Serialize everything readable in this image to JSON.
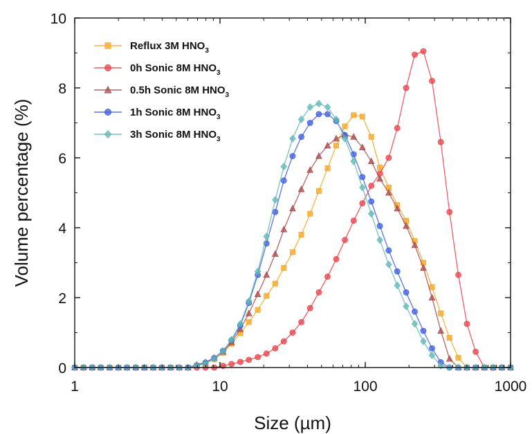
{
  "chart_data": {
    "type": "line",
    "title": "",
    "xlabel": "Size (µm)",
    "ylabel": "Volume percentage (%)",
    "x_scale": "log",
    "xlim": [
      1,
      1000
    ],
    "ylim": [
      0,
      10
    ],
    "x_ticks": [
      1,
      10,
      100,
      1000
    ],
    "x_tick_labels": [
      "1",
      "10",
      "100",
      "1000"
    ],
    "y_ticks": [
      0,
      2,
      4,
      6,
      8,
      10
    ],
    "y_tick_labels": [
      "0",
      "2",
      "4",
      "6",
      "8",
      "10"
    ],
    "grid": false,
    "legend_position": "top-left",
    "series": [
      {
        "name": "Reflux 3M HNO3",
        "legend_main": "Reflux 3M HNO",
        "legend_sub": "3",
        "color": "#f5a623",
        "marker": "square",
        "points": [
          [
            1,
            0
          ],
          [
            1.15,
            0
          ],
          [
            1.32,
            0
          ],
          [
            1.51,
            0
          ],
          [
            1.74,
            0
          ],
          [
            2.0,
            0
          ],
          [
            2.29,
            0
          ],
          [
            2.63,
            0
          ],
          [
            3.02,
            0
          ],
          [
            3.47,
            0
          ],
          [
            3.98,
            0
          ],
          [
            4.57,
            0
          ],
          [
            5.25,
            0
          ],
          [
            6.03,
            0
          ],
          [
            6.92,
            0.05
          ],
          [
            7.94,
            0.12
          ],
          [
            9.12,
            0.24
          ],
          [
            10.5,
            0.42
          ],
          [
            12.0,
            0.68
          ],
          [
            13.8,
            0.98
          ],
          [
            15.8,
            1.3
          ],
          [
            18.2,
            1.65
          ],
          [
            20.9,
            2.05
          ],
          [
            24.0,
            2.4
          ],
          [
            27.5,
            2.85
          ],
          [
            31.6,
            3.3
          ],
          [
            36.3,
            3.8
          ],
          [
            41.7,
            4.4
          ],
          [
            47.9,
            5.05
          ],
          [
            55.0,
            5.7
          ],
          [
            63.1,
            6.35
          ],
          [
            72.4,
            6.9
          ],
          [
            83.2,
            7.22
          ],
          [
            95.5,
            7.18
          ],
          [
            110,
            6.6
          ],
          [
            126,
            5.72
          ],
          [
            145,
            5.15
          ],
          [
            166,
            4.65
          ],
          [
            191,
            4.2
          ],
          [
            219,
            3.62
          ],
          [
            251,
            3.0
          ],
          [
            288,
            2.3
          ],
          [
            331,
            1.55
          ],
          [
            380,
            0.85
          ],
          [
            437,
            0.28
          ],
          [
            501,
            0
          ],
          [
            575,
            0
          ],
          [
            661,
            0
          ],
          [
            759,
            0
          ],
          [
            871,
            0
          ],
          [
            1000,
            0
          ]
        ]
      },
      {
        "name": "0h Sonic 8M HNO3",
        "legend_main": "0h Sonic 8M HNO",
        "legend_sub": "3",
        "color": "#e8424a",
        "marker": "circle",
        "points": [
          [
            1,
            0
          ],
          [
            1.15,
            0
          ],
          [
            1.32,
            0
          ],
          [
            1.51,
            0
          ],
          [
            1.74,
            0
          ],
          [
            2.0,
            0
          ],
          [
            2.29,
            0
          ],
          [
            2.63,
            0
          ],
          [
            3.02,
            0
          ],
          [
            3.47,
            0
          ],
          [
            3.98,
            0
          ],
          [
            4.57,
            0
          ],
          [
            5.25,
            0
          ],
          [
            6.03,
            0
          ],
          [
            6.92,
            0
          ],
          [
            7.94,
            0
          ],
          [
            9.12,
            0
          ],
          [
            10.5,
            0.05
          ],
          [
            12.0,
            0.1
          ],
          [
            13.8,
            0.16
          ],
          [
            15.8,
            0.22
          ],
          [
            18.2,
            0.3
          ],
          [
            20.9,
            0.4
          ],
          [
            24.0,
            0.55
          ],
          [
            27.5,
            0.75
          ],
          [
            31.6,
            1.0
          ],
          [
            36.3,
            1.3
          ],
          [
            41.7,
            1.7
          ],
          [
            47.9,
            2.15
          ],
          [
            55.0,
            2.6
          ],
          [
            63.1,
            3.1
          ],
          [
            72.4,
            3.65
          ],
          [
            83.2,
            4.2
          ],
          [
            95.5,
            4.7
          ],
          [
            110,
            5.2
          ],
          [
            126,
            5.55
          ],
          [
            145,
            6.0
          ],
          [
            166,
            6.85
          ],
          [
            191,
            8.0
          ],
          [
            219,
            8.95
          ],
          [
            251,
            9.05
          ],
          [
            288,
            8.2
          ],
          [
            331,
            6.45
          ],
          [
            380,
            4.45
          ],
          [
            437,
            2.65
          ],
          [
            501,
            1.25
          ],
          [
            575,
            0.45
          ],
          [
            661,
            0
          ],
          [
            759,
            0
          ],
          [
            871,
            0
          ],
          [
            1000,
            0
          ]
        ]
      },
      {
        "name": "0.5h Sonic 8M HNO3",
        "legend_main": "0.5h Sonic 8M HNO",
        "legend_sub": "3",
        "color": "#a94a4a",
        "marker": "triangle",
        "points": [
          [
            1,
            0
          ],
          [
            1.15,
            0
          ],
          [
            1.32,
            0
          ],
          [
            1.51,
            0
          ],
          [
            1.74,
            0
          ],
          [
            2.0,
            0
          ],
          [
            2.29,
            0
          ],
          [
            2.63,
            0
          ],
          [
            3.02,
            0
          ],
          [
            3.47,
            0
          ],
          [
            3.98,
            0
          ],
          [
            4.57,
            0
          ],
          [
            5.25,
            0
          ],
          [
            6.03,
            0
          ],
          [
            6.92,
            0.08
          ],
          [
            7.94,
            0.15
          ],
          [
            9.12,
            0.28
          ],
          [
            10.5,
            0.45
          ],
          [
            12.0,
            0.72
          ],
          [
            13.8,
            1.1
          ],
          [
            15.8,
            1.55
          ],
          [
            18.2,
            2.1
          ],
          [
            20.9,
            2.65
          ],
          [
            24.0,
            3.25
          ],
          [
            27.5,
            3.95
          ],
          [
            31.6,
            4.55
          ],
          [
            36.3,
            5.1
          ],
          [
            41.7,
            5.65
          ],
          [
            47.9,
            6.05
          ],
          [
            55.0,
            6.35
          ],
          [
            63.1,
            6.55
          ],
          [
            72.4,
            6.65
          ],
          [
            83.2,
            6.6
          ],
          [
            95.5,
            6.3
          ],
          [
            110,
            5.9
          ],
          [
            126,
            5.4
          ],
          [
            145,
            5.0
          ],
          [
            166,
            4.55
          ],
          [
            191,
            4.05
          ],
          [
            219,
            3.5
          ],
          [
            251,
            2.85
          ],
          [
            288,
            2.0
          ],
          [
            331,
            1.05
          ],
          [
            380,
            0.25
          ],
          [
            437,
            0
          ],
          [
            501,
            0
          ],
          [
            575,
            0
          ],
          [
            661,
            0
          ],
          [
            759,
            0
          ],
          [
            871,
            0
          ],
          [
            1000,
            0
          ]
        ]
      },
      {
        "name": "1h Sonic 8M HNO3",
        "legend_main": "1h Sonic 8M HNO",
        "legend_sub": "3",
        "color": "#3d5ce0",
        "marker": "circle",
        "points": [
          [
            1,
            0
          ],
          [
            1.15,
            0
          ],
          [
            1.32,
            0
          ],
          [
            1.51,
            0
          ],
          [
            1.74,
            0
          ],
          [
            2.0,
            0
          ],
          [
            2.29,
            0
          ],
          [
            2.63,
            0
          ],
          [
            3.02,
            0
          ],
          [
            3.47,
            0
          ],
          [
            3.98,
            0
          ],
          [
            4.57,
            0
          ],
          [
            5.25,
            0
          ],
          [
            6.03,
            0
          ],
          [
            6.92,
            0.06
          ],
          [
            7.94,
            0.14
          ],
          [
            9.12,
            0.27
          ],
          [
            10.5,
            0.48
          ],
          [
            12.0,
            0.78
          ],
          [
            13.8,
            1.2
          ],
          [
            15.8,
            1.85
          ],
          [
            18.2,
            2.65
          ],
          [
            20.9,
            3.55
          ],
          [
            24.0,
            4.45
          ],
          [
            27.5,
            5.35
          ],
          [
            31.6,
            6.05
          ],
          [
            36.3,
            6.6
          ],
          [
            41.7,
            7.0
          ],
          [
            47.9,
            7.25
          ],
          [
            55.0,
            7.25
          ],
          [
            63.1,
            7.05
          ],
          [
            72.4,
            6.65
          ],
          [
            83.2,
            6.1
          ],
          [
            95.5,
            5.45
          ],
          [
            110,
            4.75
          ],
          [
            126,
            4.05
          ],
          [
            145,
            3.35
          ],
          [
            166,
            2.75
          ],
          [
            191,
            2.15
          ],
          [
            219,
            1.6
          ],
          [
            251,
            1.05
          ],
          [
            288,
            0.55
          ],
          [
            331,
            0.15
          ],
          [
            380,
            0
          ],
          [
            437,
            0
          ],
          [
            501,
            0
          ],
          [
            575,
            0
          ],
          [
            661,
            0
          ],
          [
            759,
            0
          ],
          [
            871,
            0
          ],
          [
            1000,
            0
          ]
        ]
      },
      {
        "name": "3h Sonic 8M HNO3",
        "legend_main": "3h Sonic 8M HNO",
        "legend_sub": "3",
        "color": "#5fb8b4",
        "marker": "diamond",
        "points": [
          [
            1,
            0
          ],
          [
            1.15,
            0
          ],
          [
            1.32,
            0
          ],
          [
            1.51,
            0
          ],
          [
            1.74,
            0
          ],
          [
            2.0,
            0
          ],
          [
            2.29,
            0
          ],
          [
            2.63,
            0
          ],
          [
            3.02,
            0
          ],
          [
            3.47,
            0
          ],
          [
            3.98,
            0
          ],
          [
            4.57,
            0
          ],
          [
            5.25,
            0
          ],
          [
            6.03,
            0
          ],
          [
            6.92,
            0.05
          ],
          [
            7.94,
            0.12
          ],
          [
            9.12,
            0.25
          ],
          [
            10.5,
            0.46
          ],
          [
            12.0,
            0.8
          ],
          [
            13.8,
            1.25
          ],
          [
            15.8,
            1.9
          ],
          [
            18.2,
            2.75
          ],
          [
            20.9,
            3.75
          ],
          [
            24.0,
            4.8
          ],
          [
            27.5,
            5.75
          ],
          [
            31.6,
            6.55
          ],
          [
            36.3,
            7.1
          ],
          [
            41.7,
            7.45
          ],
          [
            47.9,
            7.55
          ],
          [
            55.0,
            7.45
          ],
          [
            63.1,
            7.1
          ],
          [
            72.4,
            6.55
          ],
          [
            83.2,
            5.9
          ],
          [
            95.5,
            5.15
          ],
          [
            110,
            4.4
          ],
          [
            126,
            3.65
          ],
          [
            145,
            2.95
          ],
          [
            166,
            2.35
          ],
          [
            191,
            1.75
          ],
          [
            219,
            1.25
          ],
          [
            251,
            0.75
          ],
          [
            288,
            0.35
          ],
          [
            331,
            0.05
          ],
          [
            380,
            0
          ],
          [
            437,
            0
          ],
          [
            501,
            0
          ],
          [
            575,
            0
          ],
          [
            661,
            0
          ],
          [
            759,
            0
          ],
          [
            871,
            0
          ],
          [
            1000,
            0
          ]
        ]
      }
    ]
  }
}
